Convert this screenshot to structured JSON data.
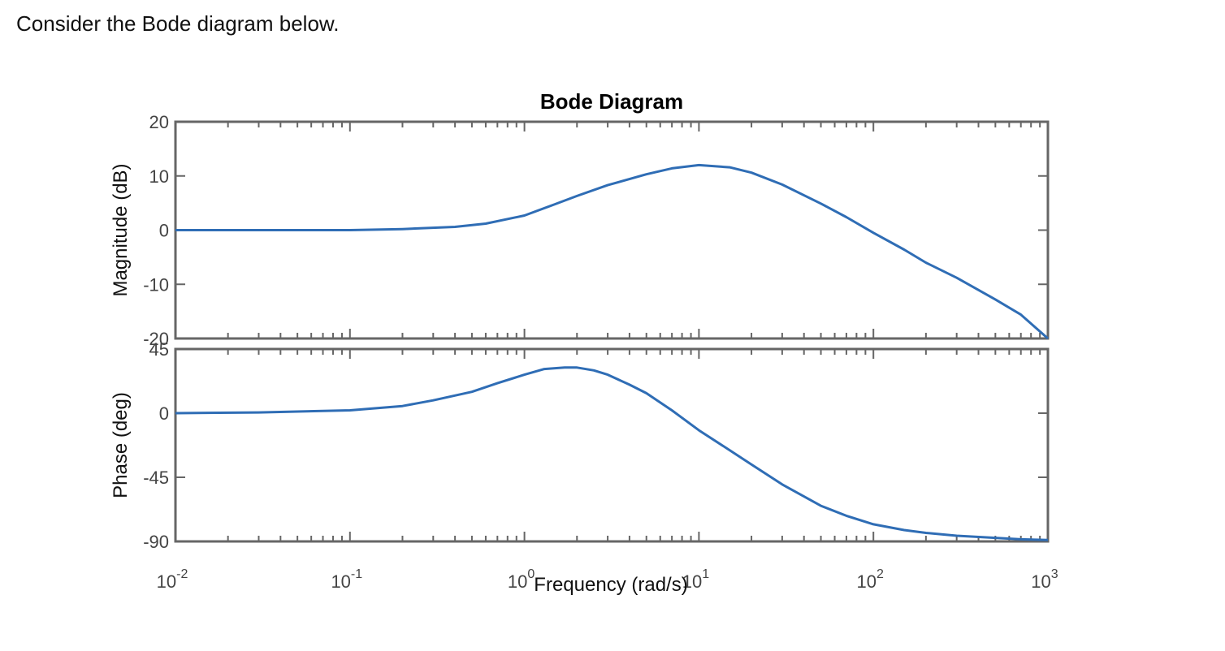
{
  "question": "Consider the Bode diagram below.",
  "chart_data": {
    "type": "line",
    "title": "Bode Diagram",
    "xlabel": "Frequency  (rad/s)",
    "xscale": "log",
    "xlim": [
      0.01,
      1000
    ],
    "x_ticks": [
      {
        "value": 0.01,
        "base": "10",
        "exp": "-2"
      },
      {
        "value": 0.1,
        "base": "10",
        "exp": "-1"
      },
      {
        "value": 1,
        "base": "10",
        "exp": "0"
      },
      {
        "value": 10,
        "base": "10",
        "exp": "1"
      },
      {
        "value": 100,
        "base": "10",
        "exp": "2"
      },
      {
        "value": 1000,
        "base": "10",
        "exp": "3"
      }
    ],
    "line_color": "#2f6db5",
    "axis_color": "#666666",
    "panels": [
      {
        "name": "magnitude",
        "ylabel": "Magnitude (dB)",
        "ylim": [
          -20,
          20
        ],
        "yticks": [
          "20",
          "10",
          "0",
          "-10",
          "-20"
        ],
        "x": [
          0.01,
          0.03,
          0.1,
          0.2,
          0.4,
          0.6,
          1,
          1.5,
          2,
          3,
          5,
          7,
          10,
          15,
          20,
          30,
          50,
          70,
          100,
          150,
          200,
          300,
          500,
          700,
          1000
        ],
        "y": [
          0,
          0,
          0,
          0.2,
          0.6,
          1.2,
          2.7,
          4.8,
          6.3,
          8.3,
          10.3,
          11.4,
          12,
          11.6,
          10.6,
          8.4,
          4.9,
          2.4,
          -0.5,
          -3.6,
          -6,
          -8.8,
          -12.8,
          -15.6,
          -20
        ]
      },
      {
        "name": "phase",
        "ylabel": "Phase (deg)",
        "ylim": [
          -90,
          45
        ],
        "yticks": [
          "45",
          "0",
          "-45",
          "-90"
        ],
        "x": [
          0.01,
          0.03,
          0.1,
          0.2,
          0.3,
          0.5,
          0.7,
          1,
          1.3,
          1.7,
          2,
          2.5,
          3,
          4,
          5,
          7,
          10,
          15,
          20,
          30,
          50,
          70,
          100,
          150,
          200,
          300,
          500,
          700,
          1000
        ],
        "y": [
          0,
          0.5,
          2,
          5,
          9,
          15,
          21,
          27,
          31,
          32,
          32,
          30,
          27,
          20,
          14,
          2,
          -12,
          -26,
          -36,
          -50,
          -65,
          -72,
          -78,
          -82,
          -84,
          -86,
          -87.5,
          -88.5,
          -89
        ]
      }
    ]
  }
}
